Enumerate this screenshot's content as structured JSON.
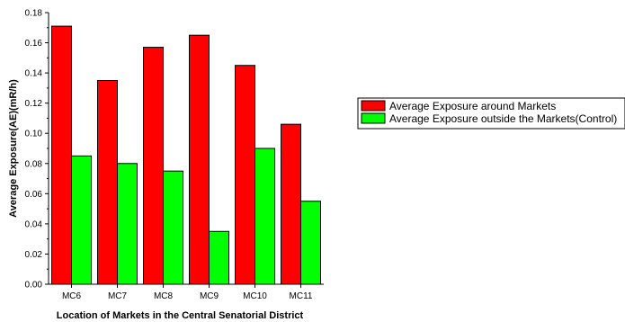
{
  "chart_data": {
    "type": "bar",
    "xlabel": "Location of Markets in the Central Senatorial District",
    "ylabel": "Average Exposure(AE)(mR/h)",
    "categories": [
      "MC6",
      "MC7",
      "MC8",
      "MC9",
      "MC10",
      "MC11"
    ],
    "ylim": [
      0,
      0.18
    ],
    "yticks": [
      "0.00",
      "0.02",
      "0.04",
      "0.06",
      "0.08",
      "0.10",
      "0.12",
      "0.14",
      "0.16",
      "0.18"
    ],
    "grid": false,
    "legend_position": "right",
    "series": [
      {
        "name": "Average Exposure around Markets",
        "color": "#ff0000",
        "values": [
          0.171,
          0.135,
          0.157,
          0.165,
          0.145,
          0.106
        ]
      },
      {
        "name": "Average Exposure outside the Markets(Control)",
        "color": "#00ff00",
        "values": [
          0.085,
          0.08,
          0.075,
          0.035,
          0.09,
          0.055
        ]
      }
    ]
  }
}
